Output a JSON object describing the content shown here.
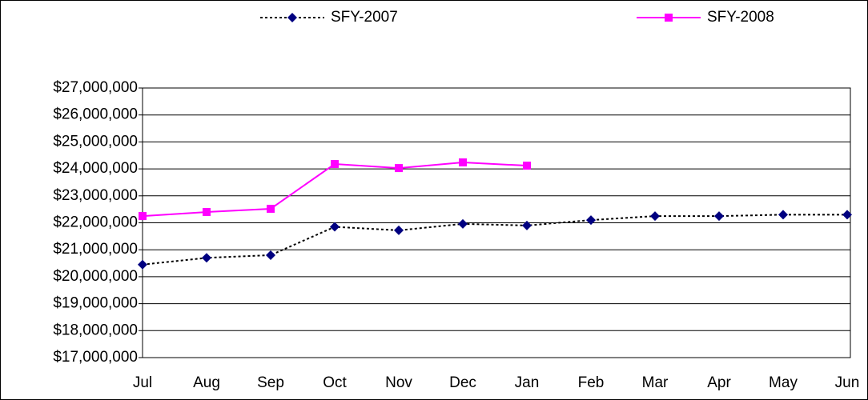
{
  "chart_data": {
    "type": "line",
    "categories": [
      "Jul",
      "Aug",
      "Sep",
      "Oct",
      "Nov",
      "Dec",
      "Jan",
      "Feb",
      "Mar",
      "Apr",
      "May",
      "Jun"
    ],
    "series": [
      {
        "name": "SFY-2007",
        "color": "#000080",
        "line_color": "#000000",
        "dash": true,
        "marker": "diamond",
        "values": [
          20450000,
          20700000,
          20800000,
          21850000,
          21720000,
          21960000,
          21900000,
          22100000,
          22250000,
          22250000,
          22300000,
          22300000
        ]
      },
      {
        "name": "SFY-2008",
        "color": "#ff00ff",
        "line_color": "#ff00ff",
        "dash": false,
        "marker": "square",
        "values": [
          22250000,
          22400000,
          22520000,
          24180000,
          24030000,
          24240000,
          24120000,
          null,
          null,
          null,
          null,
          null
        ]
      }
    ],
    "ylim": [
      17000000,
      27000000
    ],
    "yticks": [
      {
        "value": 17000000,
        "label": "$17,000,000"
      },
      {
        "value": 18000000,
        "label": "$18,000,000"
      },
      {
        "value": 19000000,
        "label": "$19,000,000"
      },
      {
        "value": 20000000,
        "label": "$20,000,000"
      },
      {
        "value": 21000000,
        "label": "$21,000,000"
      },
      {
        "value": 22000000,
        "label": "$22,000,000"
      },
      {
        "value": 23000000,
        "label": "$23,000,000"
      },
      {
        "value": 24000000,
        "label": "$24,000,000"
      },
      {
        "value": 25000000,
        "label": "$25,000,000"
      },
      {
        "value": 26000000,
        "label": "$26,000,000"
      },
      {
        "value": 27000000,
        "label": "$27,000,000"
      }
    ],
    "grid": true,
    "legend": "top"
  }
}
